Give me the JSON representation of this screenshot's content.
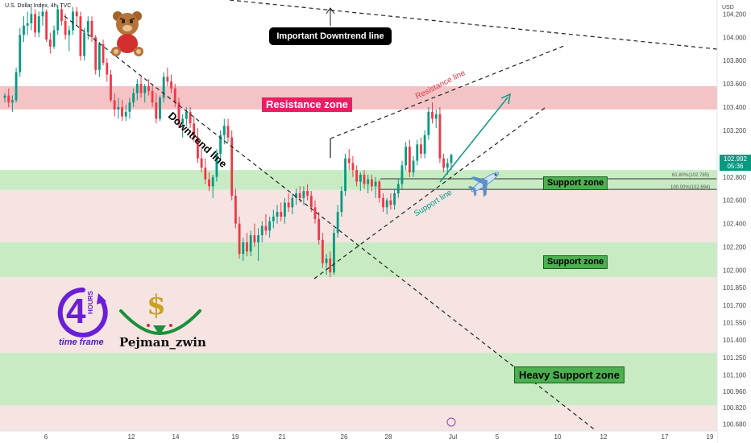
{
  "header": {
    "symbol_text": "U.S. Dollar Index, 4h, TVC"
  },
  "price_scale": {
    "currency": "USD",
    "ticks": [
      "104.200",
      "104.000",
      "103.800",
      "103.600",
      "103.400",
      "103.200",
      "102.800",
      "102.600",
      "102.400",
      "102.200",
      "102.000",
      "101.850",
      "101.700",
      "101.550",
      "101.400",
      "101.250",
      "101.100",
      "100.960",
      "100.820",
      "100.680"
    ],
    "last_price": "102.992",
    "countdown": "05:36",
    "last_price_color": "#089981"
  },
  "time_axis": {
    "ticks": [
      "6",
      "12",
      "14",
      "19",
      "21",
      "26",
      "28",
      "Jul",
      "5",
      "10",
      "12",
      "17",
      "19"
    ]
  },
  "annotations": {
    "downtrend_callout": "Important Downtrend line",
    "downtrend_line": "Downtrend line",
    "resistance_zone": "Resistance zone",
    "resistance_line": "Resistance line",
    "support_line": "Support line",
    "support_zone_1": "Support zone",
    "support_zone_2": "Support zone",
    "heavy_support_zone": "Heavy Support zone",
    "fib_618": "61.80%(102.785)",
    "fib_100": "100.00%(102.694)"
  },
  "branding": {
    "hours_digit": "4",
    "hours_word": "HOURS",
    "timeframe_text": "time frame",
    "author": "Pejman_zwin"
  },
  "colors": {
    "up": "#089981",
    "down": "#f23645",
    "resistance_band": "#f3c3c6",
    "support_band": "#c8ebc4",
    "neutral_band": "#f5e4e2",
    "accent_purple": "#7b2ff7",
    "arrow_teal": "#089981"
  },
  "chart_data": {
    "type": "candlestick",
    "timeframe": "4h",
    "instrument": "U.S. Dollar Index",
    "ylim": [
      100.62,
      104.32
    ],
    "zones": [
      {
        "name": "Resistance zone",
        "low": 103.38,
        "high": 103.58
      },
      {
        "name": "Support zone",
        "low": 102.69,
        "high": 102.86
      },
      {
        "name": "Support zone",
        "low": 101.94,
        "high": 102.24
      },
      {
        "name": "Heavy Support zone",
        "low": 100.84,
        "high": 101.29
      }
    ],
    "fib_levels": [
      {
        "label": "61.80%",
        "value": 102.785
      },
      {
        "label": "100.00%",
        "value": 102.694
      }
    ],
    "candles": [
      [
        103.48,
        103.52,
        103.44,
        103.5
      ],
      [
        103.5,
        103.56,
        103.4,
        103.44
      ],
      [
        103.44,
        103.5,
        103.36,
        103.46
      ],
      [
        103.46,
        103.74,
        103.44,
        103.7
      ],
      [
        103.7,
        104.08,
        103.66,
        104.02
      ],
      [
        104.02,
        104.18,
        103.96,
        104.1
      ],
      [
        104.1,
        104.22,
        104.02,
        104.12
      ],
      [
        104.12,
        104.26,
        104.06,
        104.2
      ],
      [
        104.2,
        104.24,
        104.0,
        104.04
      ],
      [
        104.04,
        104.22,
        104.0,
        104.18
      ],
      [
        104.18,
        104.26,
        104.1,
        104.22
      ],
      [
        104.22,
        104.24,
        103.96,
        103.98
      ],
      [
        103.98,
        104.04,
        103.86,
        103.92
      ],
      [
        103.92,
        104.1,
        103.9,
        104.06
      ],
      [
        104.06,
        104.28,
        104.02,
        104.24
      ],
      [
        104.24,
        104.28,
        104.1,
        104.14
      ],
      [
        104.14,
        104.2,
        103.98,
        104.02
      ],
      [
        104.02,
        104.1,
        103.88,
        104.06
      ],
      [
        104.06,
        104.26,
        104.02,
        104.22
      ],
      [
        104.22,
        104.26,
        104.1,
        104.18
      ],
      [
        104.18,
        104.22,
        103.8,
        103.84
      ],
      [
        103.84,
        104.08,
        103.8,
        104.04
      ],
      [
        104.04,
        104.18,
        103.98,
        104.14
      ],
      [
        104.14,
        104.18,
        103.96,
        104.0
      ],
      [
        104.0,
        104.02,
        103.68,
        103.72
      ],
      [
        103.72,
        103.96,
        103.66,
        103.94
      ],
      [
        103.94,
        103.98,
        103.76,
        103.78
      ],
      [
        103.78,
        103.82,
        103.62,
        103.68
      ],
      [
        103.68,
        103.72,
        103.44,
        103.46
      ],
      [
        103.46,
        103.52,
        103.32,
        103.38
      ],
      [
        103.38,
        103.48,
        103.3,
        103.4
      ],
      [
        103.4,
        103.46,
        103.28,
        103.32
      ],
      [
        103.32,
        103.42,
        103.28,
        103.36
      ],
      [
        103.36,
        103.48,
        103.3,
        103.44
      ],
      [
        103.44,
        103.56,
        103.4,
        103.52
      ],
      [
        103.52,
        103.64,
        103.46,
        103.6
      ],
      [
        103.6,
        103.66,
        103.48,
        103.52
      ],
      [
        103.52,
        103.6,
        103.44,
        103.58
      ],
      [
        103.58,
        103.64,
        103.5,
        103.54
      ],
      [
        103.54,
        103.6,
        103.4,
        103.44
      ],
      [
        103.44,
        103.52,
        103.26,
        103.3
      ],
      [
        103.3,
        103.5,
        103.28,
        103.48
      ],
      [
        103.48,
        103.7,
        103.44,
        103.66
      ],
      [
        103.66,
        103.74,
        103.58,
        103.62
      ],
      [
        103.62,
        103.68,
        103.52,
        103.56
      ],
      [
        103.56,
        103.6,
        103.4,
        103.44
      ],
      [
        103.44,
        103.48,
        103.22,
        103.26
      ],
      [
        103.26,
        103.34,
        103.14,
        103.3
      ],
      [
        103.3,
        103.4,
        103.24,
        103.36
      ],
      [
        103.36,
        103.4,
        103.22,
        103.26
      ],
      [
        103.26,
        103.32,
        103.1,
        103.14
      ],
      [
        103.14,
        103.22,
        102.92,
        102.96
      ],
      [
        102.96,
        103.04,
        102.84,
        102.88
      ],
      [
        102.88,
        102.96,
        102.74,
        102.78
      ],
      [
        102.78,
        102.84,
        102.68,
        102.72
      ],
      [
        102.72,
        102.82,
        102.62,
        102.8
      ],
      [
        102.8,
        103.04,
        102.76,
        103.0
      ],
      [
        103.0,
        103.2,
        102.94,
        103.16
      ],
      [
        103.16,
        103.3,
        103.08,
        103.24
      ],
      [
        103.24,
        103.3,
        103.1,
        103.14
      ],
      [
        103.14,
        103.2,
        102.6,
        102.64
      ],
      [
        102.64,
        102.7,
        102.36,
        102.4
      ],
      [
        102.4,
        102.46,
        102.1,
        102.14
      ],
      [
        102.14,
        102.28,
        102.08,
        102.24
      ],
      [
        102.24,
        102.32,
        102.12,
        102.16
      ],
      [
        102.16,
        102.34,
        102.12,
        102.3
      ],
      [
        102.3,
        102.4,
        102.2,
        102.24
      ],
      [
        102.24,
        102.36,
        102.08,
        102.3
      ],
      [
        102.3,
        102.42,
        102.24,
        102.38
      ],
      [
        102.38,
        102.48,
        102.3,
        102.34
      ],
      [
        102.34,
        102.46,
        102.28,
        102.42
      ],
      [
        102.42,
        102.52,
        102.36,
        102.46
      ],
      [
        102.46,
        102.56,
        102.4,
        102.5
      ],
      [
        102.5,
        102.58,
        102.42,
        102.46
      ],
      [
        102.46,
        102.62,
        102.4,
        102.58
      ],
      [
        102.58,
        102.66,
        102.5,
        102.54
      ],
      [
        102.54,
        102.66,
        102.48,
        102.62
      ],
      [
        102.62,
        102.7,
        102.56,
        102.66
      ],
      [
        102.66,
        102.72,
        102.58,
        102.62
      ],
      [
        102.62,
        102.72,
        102.56,
        102.68
      ],
      [
        102.68,
        102.74,
        102.6,
        102.64
      ],
      [
        102.64,
        102.68,
        102.5,
        102.54
      ],
      [
        102.54,
        102.6,
        102.4,
        102.44
      ],
      [
        102.44,
        102.5,
        102.22,
        102.26
      ],
      [
        102.26,
        102.32,
        102.02,
        102.06
      ],
      [
        102.06,
        102.14,
        101.96,
        102.1
      ],
      [
        102.1,
        102.16,
        101.94,
        101.98
      ],
      [
        101.98,
        102.36,
        101.96,
        102.32
      ],
      [
        102.32,
        102.56,
        102.28,
        102.5
      ],
      [
        102.5,
        102.72,
        102.46,
        102.68
      ],
      [
        102.68,
        103.0,
        102.64,
        102.96
      ],
      [
        102.96,
        103.04,
        102.86,
        102.92
      ],
      [
        102.92,
        102.98,
        102.8,
        102.86
      ],
      [
        102.86,
        102.9,
        102.72,
        102.76
      ],
      [
        102.76,
        102.84,
        102.68,
        102.82
      ],
      [
        102.82,
        102.86,
        102.7,
        102.74
      ],
      [
        102.74,
        102.82,
        102.66,
        102.78
      ],
      [
        102.78,
        102.82,
        102.68,
        102.72
      ],
      [
        102.72,
        102.8,
        102.62,
        102.76
      ],
      [
        102.76,
        102.78,
        102.58,
        102.62
      ],
      [
        102.62,
        102.66,
        102.5,
        102.54
      ],
      [
        102.54,
        102.62,
        102.48,
        102.6
      ],
      [
        102.6,
        102.66,
        102.52,
        102.56
      ],
      [
        102.56,
        102.7,
        102.52,
        102.66
      ],
      [
        102.66,
        102.78,
        102.62,
        102.74
      ],
      [
        102.74,
        102.94,
        102.7,
        102.9
      ],
      [
        102.9,
        103.1,
        102.86,
        103.06
      ],
      [
        103.06,
        103.12,
        102.8,
        102.84
      ],
      [
        102.84,
        102.98,
        102.8,
        102.94
      ],
      [
        102.94,
        103.12,
        102.9,
        103.08
      ],
      [
        103.08,
        103.14,
        102.96,
        103.0
      ],
      [
        103.0,
        103.2,
        102.96,
        103.16
      ],
      [
        103.16,
        103.4,
        103.12,
        103.36
      ],
      [
        103.36,
        103.44,
        103.26,
        103.3
      ],
      [
        103.3,
        103.38,
        103.22,
        103.34
      ],
      [
        103.34,
        103.4,
        102.92,
        102.96
      ],
      [
        102.96,
        103.0,
        102.84,
        102.88
      ],
      [
        102.88,
        102.96,
        102.82,
        102.92
      ],
      [
        102.92,
        103.0,
        102.86,
        102.99
      ]
    ]
  }
}
